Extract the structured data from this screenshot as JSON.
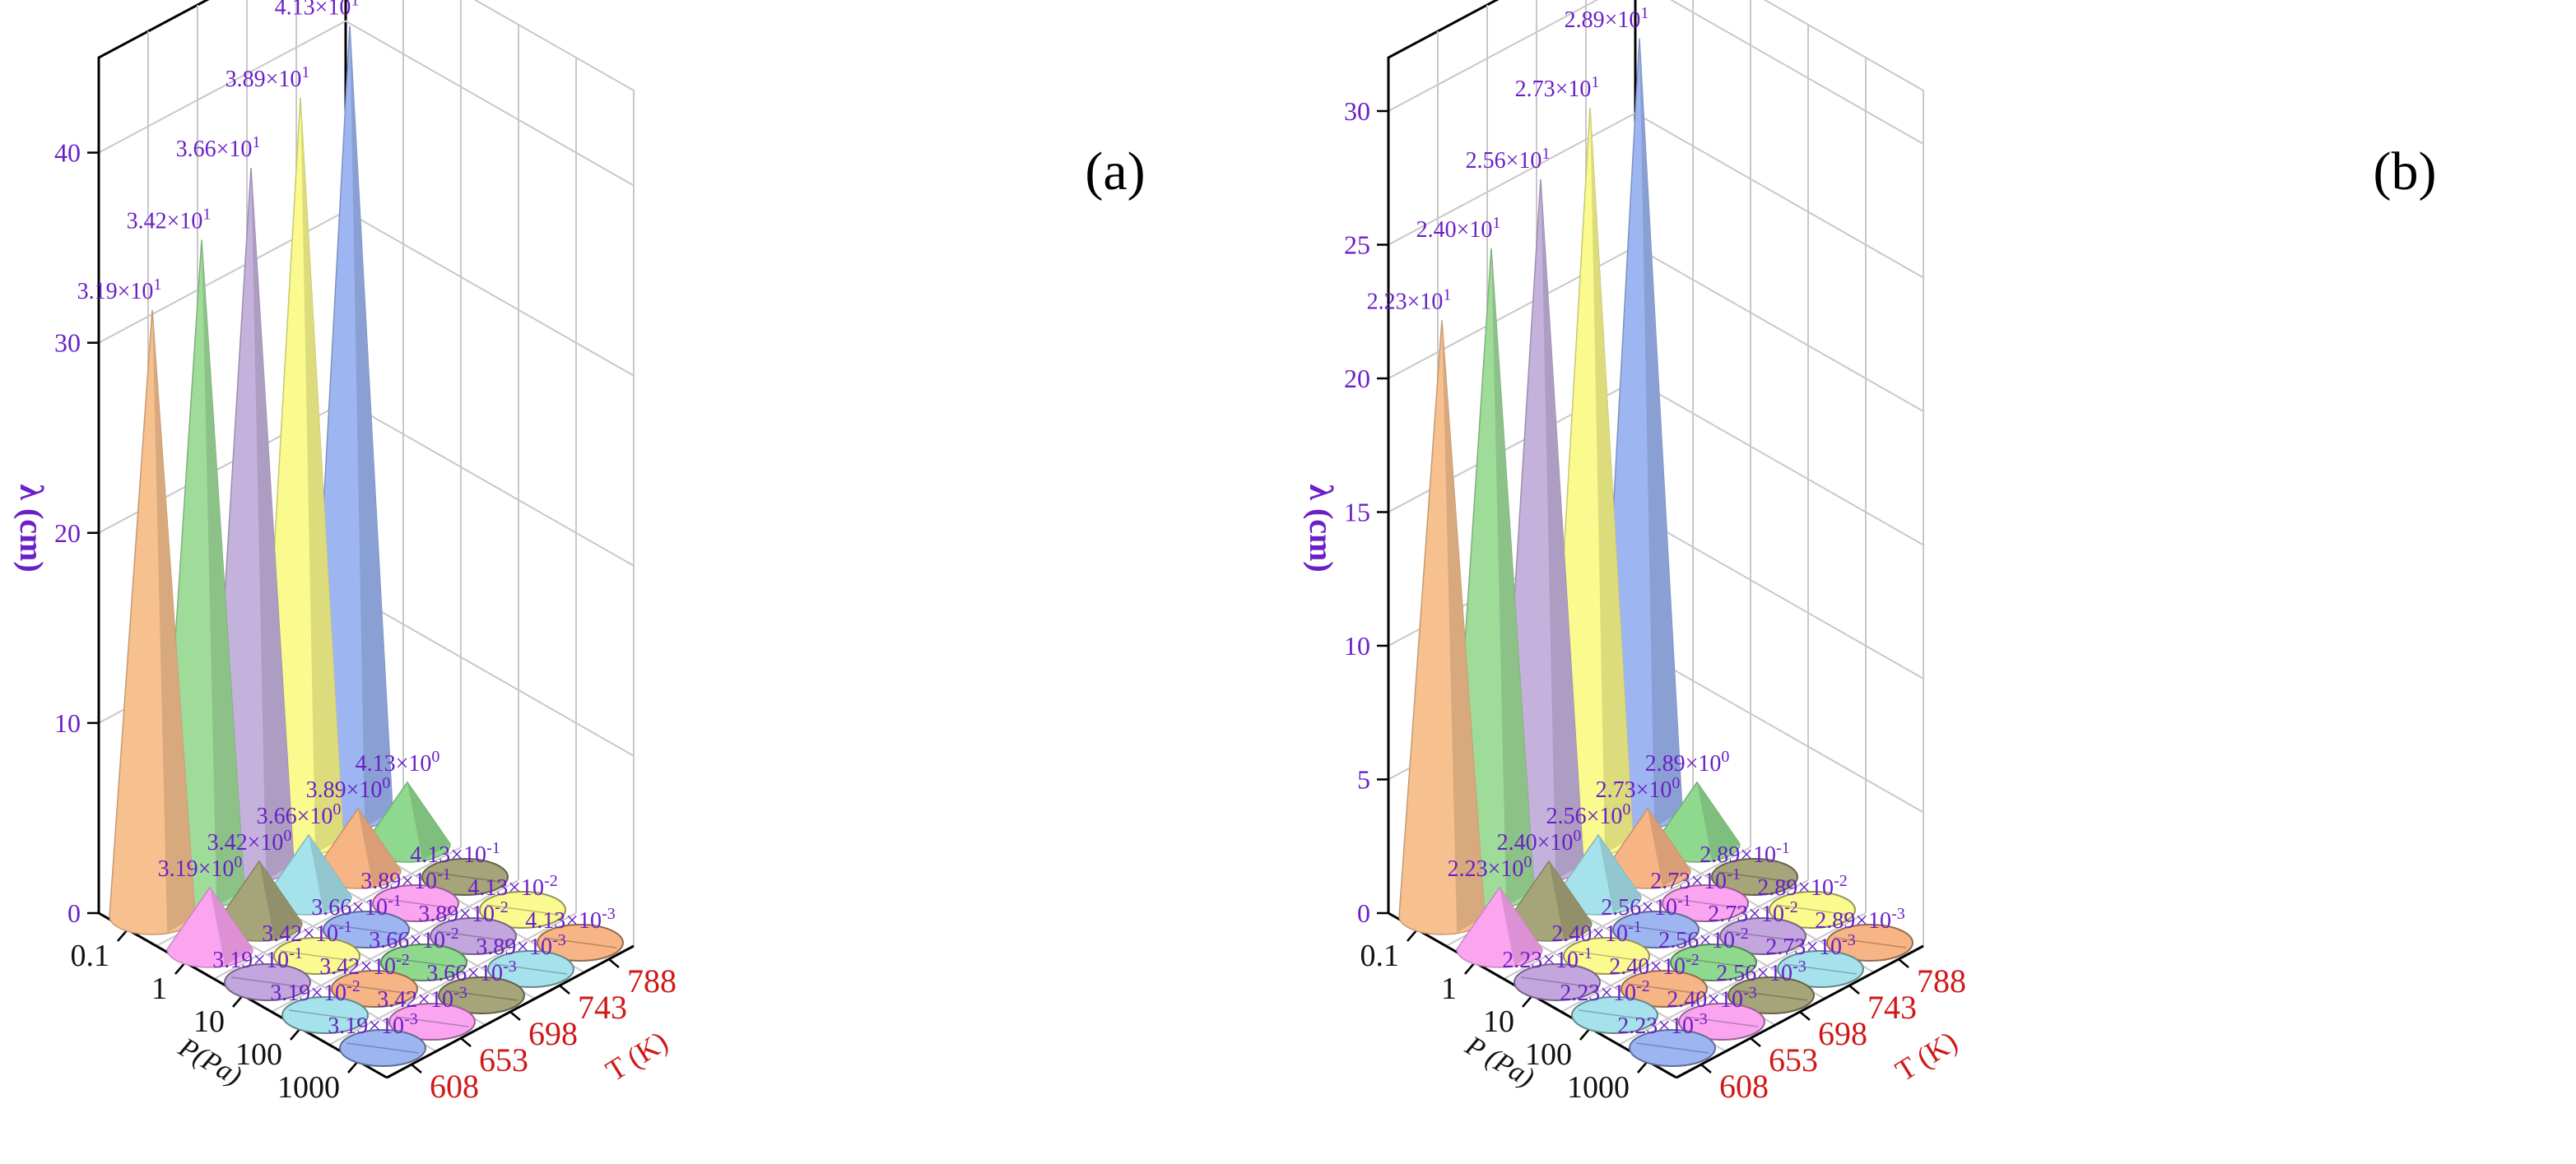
{
  "chart_data": [
    {
      "type": "3d-cone",
      "panel_label": "(a)",
      "zlabel": "λ (cm)",
      "plabel": "P(Pa)",
      "tlabel": "T (K)",
      "p_ticks": [
        "0.1",
        "1",
        "10",
        "100",
        "1000"
      ],
      "t_ticks": [
        "608",
        "653",
        "698",
        "743",
        "788"
      ],
      "z_ticks": [
        "0",
        "10",
        "20",
        "30",
        "40"
      ],
      "zlim": [
        0,
        45
      ],
      "values": [
        [
          31.9,
          34.2,
          36.6,
          38.9,
          41.3
        ],
        [
          3.19,
          3.42,
          3.66,
          3.89,
          4.13
        ],
        [
          0.319,
          0.342,
          0.366,
          0.389,
          0.413
        ],
        [
          0.0319,
          0.0342,
          0.0366,
          0.0389,
          0.0413
        ],
        [
          0.00319,
          0.00342,
          0.00366,
          0.00389,
          0.00413
        ]
      ],
      "labels": [
        [
          [
            "3.19×10",
            "1"
          ],
          [
            "3.42×10",
            "1"
          ],
          [
            "3.66×10",
            "1"
          ],
          [
            "3.89×10",
            "1"
          ],
          [
            "4.13×10",
            "1"
          ]
        ],
        [
          [
            "3.19×10",
            "0"
          ],
          [
            "3.42×10",
            "0"
          ],
          [
            "3.66×10",
            "0"
          ],
          [
            "3.89×10",
            "0"
          ],
          [
            "4.13×10",
            "0"
          ]
        ],
        [
          [
            "3.19×10",
            "-1"
          ],
          [
            "3.42×10",
            "-1"
          ],
          [
            "3.66×10",
            "-1"
          ],
          [
            "3.89×10",
            "-1"
          ],
          [
            "4.13×10",
            "-1"
          ]
        ],
        [
          [
            "3.19×10",
            "-2"
          ],
          [
            "3.42×10",
            "-2"
          ],
          [
            "3.66×10",
            "-2"
          ],
          [
            "3.89×10",
            "-2"
          ],
          [
            "4.13×10",
            "-2"
          ]
        ],
        [
          [
            "3.19×10",
            "-3"
          ],
          [
            "3.42×10",
            "-3"
          ],
          [
            "3.66×10",
            "-3"
          ],
          [
            "3.89×10",
            "-3"
          ],
          [
            "4.13×10",
            "-3"
          ]
        ]
      ]
    },
    {
      "type": "3d-cone",
      "panel_label": "(b)",
      "zlabel": "λ (cm)",
      "plabel": "P (Pa)",
      "tlabel": "T (K)",
      "p_ticks": [
        "0.1",
        "1",
        "10",
        "100",
        "1000"
      ],
      "t_ticks": [
        "608",
        "653",
        "698",
        "743",
        "788"
      ],
      "z_ticks": [
        "0",
        "5",
        "10",
        "15",
        "20",
        "25",
        "30"
      ],
      "zlim": [
        0,
        32
      ],
      "values": [
        [
          22.3,
          24.0,
          25.6,
          27.3,
          28.9
        ],
        [
          2.23,
          2.4,
          2.56,
          2.73,
          2.89
        ],
        [
          0.223,
          0.24,
          0.256,
          0.273,
          0.289
        ],
        [
          0.0223,
          0.024,
          0.0256,
          0.0273,
          0.0289
        ],
        [
          0.00223,
          0.0024,
          0.00256,
          0.00273,
          0.00289
        ]
      ],
      "labels": [
        [
          [
            "2.23×10",
            "1"
          ],
          [
            "2.40×10",
            "1"
          ],
          [
            "2.56×10",
            "1"
          ],
          [
            "2.73×10",
            "1"
          ],
          [
            "2.89×10",
            "1"
          ]
        ],
        [
          [
            "2.23×10",
            "0"
          ],
          [
            "2.40×10",
            "0"
          ],
          [
            "2.56×10",
            "0"
          ],
          [
            "2.73×10",
            "0"
          ],
          [
            "2.89×10",
            "0"
          ]
        ],
        [
          [
            "2.23×10",
            "-1"
          ],
          [
            "2.40×10",
            "-1"
          ],
          [
            "2.56×10",
            "-1"
          ],
          [
            "2.73×10",
            "-1"
          ],
          [
            "2.89×10",
            "-1"
          ]
        ],
        [
          [
            "2.23×10",
            "-2"
          ],
          [
            "2.40×10",
            "-2"
          ],
          [
            "2.56×10",
            "-2"
          ],
          [
            "2.73×10",
            "-2"
          ],
          [
            "2.89×10",
            "-2"
          ]
        ],
        [
          [
            "2.23×10",
            "-3"
          ],
          [
            "2.40×10",
            "-3"
          ],
          [
            "2.56×10",
            "-3"
          ],
          [
            "2.73×10",
            "-3"
          ],
          [
            "2.89×10",
            "-3"
          ]
        ]
      ]
    }
  ],
  "cone_colors": [
    [
      "#f7c08f",
      "#9fdc9a",
      "#c5b2dc",
      "#fafa8e",
      "#9db6f1"
    ],
    [
      "#fba5f1",
      "#a6a479",
      "#a6e2eb",
      "#f7b485",
      "#8fd98f"
    ],
    [
      "#c3a6dd",
      "#fafa8e",
      "#9db6f1",
      "#fba5f1",
      "#a6a479"
    ],
    [
      "#a6e2eb",
      "#f7b485",
      "#8fd98f",
      "#c3a6dd",
      "#fafa8e"
    ],
    [
      "#9db6f1",
      "#fba5f1",
      "#a6a479",
      "#a6e2eb",
      "#f7b485"
    ]
  ]
}
